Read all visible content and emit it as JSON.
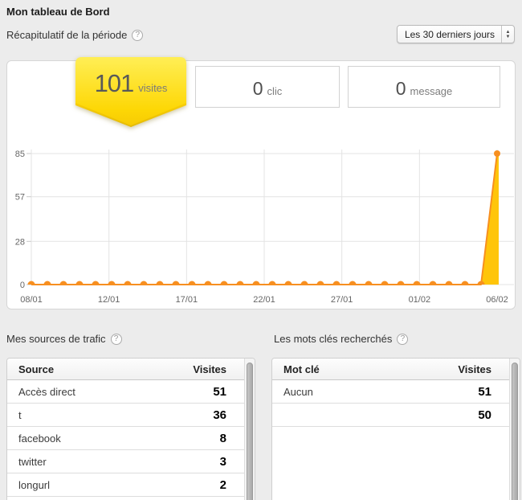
{
  "page_title": "Mon tableau de Bord",
  "period": {
    "label": "Récapitulatif de la période",
    "selector_value": "Les 30 derniers jours"
  },
  "icons": {
    "help_glyph": "?",
    "select_arrow_up": "▲",
    "select_arrow_down": "▼"
  },
  "stats": [
    {
      "value": "101",
      "label": "visites",
      "highlighted": true
    },
    {
      "value": "0",
      "label": "clic",
      "highlighted": false
    },
    {
      "value": "0",
      "label": "message",
      "highlighted": false
    }
  ],
  "chart_data": {
    "type": "area",
    "title": "",
    "xlabel": "",
    "ylabel": "",
    "x_tick_labels": [
      "08/01",
      "12/01",
      "17/01",
      "22/01",
      "27/01",
      "01/02",
      "06/02"
    ],
    "y_ticks": [
      0,
      28,
      57,
      85
    ],
    "ylim": [
      0,
      85
    ],
    "grid": true,
    "values": [
      0,
      0,
      0,
      0,
      0,
      0,
      0,
      0,
      0,
      0,
      0,
      0,
      0,
      0,
      0,
      0,
      0,
      0,
      0,
      0,
      0,
      0,
      0,
      0,
      0,
      0,
      0,
      0,
      0,
      85
    ],
    "line_color": "#f78f20",
    "fill_color": "#ffc50a",
    "grid_color": "#e3e3e3",
    "tick_text_color": "#666666"
  },
  "traffic_sources": {
    "title": "Mes sources de trafic",
    "columns": [
      "Source",
      "Visites"
    ],
    "rows": [
      {
        "label": "Accès direct",
        "value": "51"
      },
      {
        "label": "t",
        "value": "36"
      },
      {
        "label": "facebook",
        "value": "8"
      },
      {
        "label": "twitter",
        "value": "3"
      },
      {
        "label": "longurl",
        "value": "2"
      }
    ]
  },
  "keywords": {
    "title": "Les mots clés recherchés",
    "columns": [
      "Mot clé",
      "Visites"
    ],
    "rows": [
      {
        "label": "Aucun",
        "value": "51"
      },
      {
        "label": "",
        "value": "50"
      }
    ]
  },
  "colors": {
    "badge_yellow_top": "#ffee55",
    "badge_yellow_bottom": "#fdd705",
    "badge_chevron_dark": "#e3b904",
    "panel_border": "#d6d6d6",
    "page_background": "#ececec"
  }
}
